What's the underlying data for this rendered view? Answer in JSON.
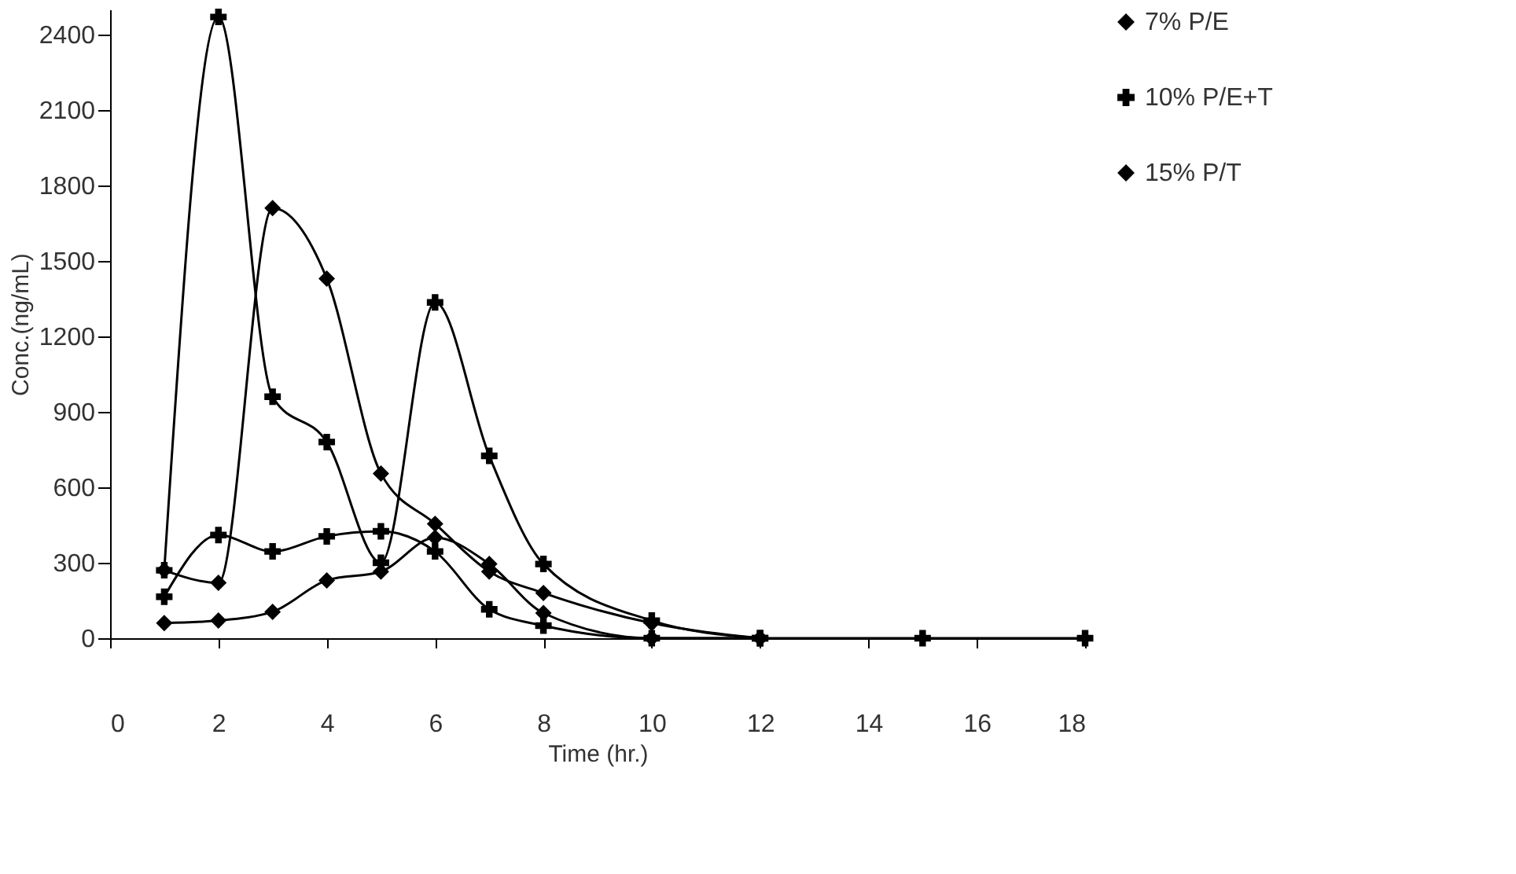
{
  "chart_data": {
    "type": "line",
    "xlabel": "Time (hr.)",
    "ylabel": "Conc.(ng/mL)",
    "xlim": [
      0,
      18
    ],
    "xticks": [
      0,
      2,
      4,
      6,
      8,
      10,
      12,
      14,
      16,
      18
    ],
    "ylim": [
      0,
      2500
    ],
    "yticks": [
      0,
      300,
      600,
      900,
      1200,
      1500,
      1800,
      2100,
      2400
    ],
    "grid": false,
    "legend": "right",
    "line_style": "solid",
    "series": [
      {
        "name": "7% P/E",
        "color": "#000000",
        "marker": "diamond",
        "x": [
          1,
          2,
          3,
          4,
          5,
          6,
          7,
          8,
          10,
          12
        ],
        "values": [
          270,
          220,
          1710,
          1430,
          655,
          455,
          265,
          180,
          60,
          0
        ]
      },
      {
        "name": "10% P/E+T",
        "color": "#000000",
        "marker": "cross",
        "x": [
          1,
          2,
          3,
          4,
          5,
          6,
          7,
          8,
          10,
          12
        ],
        "values": [
          270,
          2470,
          960,
          780,
          300,
          1335,
          725,
          295,
          70,
          0
        ]
      },
      {
        "name": "15% P/T",
        "color": "#000000",
        "marker": "diamond",
        "x": [
          1,
          2,
          3,
          4,
          5,
          6,
          7,
          8,
          10,
          12
        ],
        "values": [
          60,
          70,
          105,
          230,
          265,
          400,
          295,
          100,
          0,
          0
        ]
      },
      {
        "color": "#000000",
        "marker": "cross",
        "x": [
          1,
          2,
          3,
          4,
          5,
          6,
          7,
          8,
          10,
          12,
          15,
          18
        ],
        "values": [
          165,
          410,
          345,
          405,
          425,
          345,
          115,
          50,
          0,
          0,
          0,
          0
        ]
      }
    ]
  }
}
